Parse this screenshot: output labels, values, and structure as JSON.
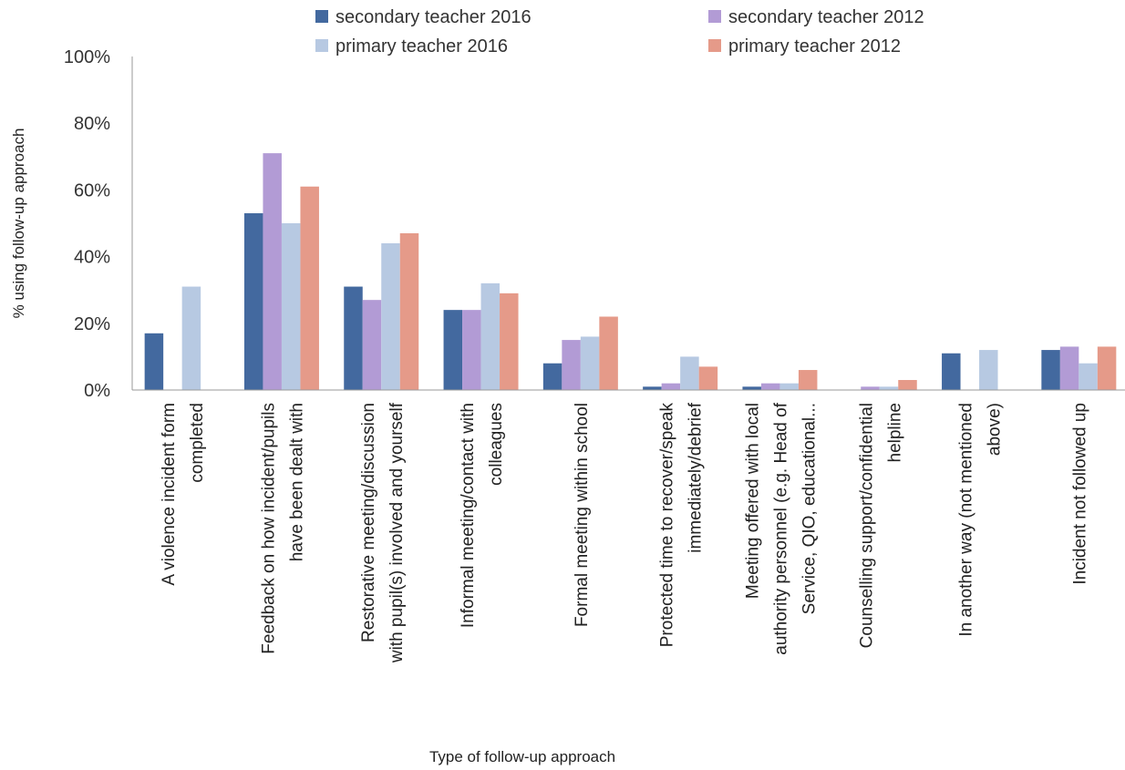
{
  "chart_data": {
    "type": "bar",
    "title": "",
    "xlabel": "Type of follow-up approach",
    "ylabel": "% using follow-up approach",
    "ylim": [
      0,
      100
    ],
    "yticks": [
      "0%",
      "20%",
      "40%",
      "60%",
      "80%",
      "100%"
    ],
    "grid": false,
    "legend_position": "top",
    "categories": [
      [
        "A violence incident form",
        "completed"
      ],
      [
        "Feedback on how incident/pupils",
        "have been dealt with"
      ],
      [
        "Restorative meeting/discussion",
        "with pupil(s) involved and yourself"
      ],
      [
        "Informal meeting/contact with",
        "colleagues"
      ],
      [
        "Formal meeting within school"
      ],
      [
        "Protected time to recover/speak",
        "immediately/debrief"
      ],
      [
        "Meeting offered with local",
        "authority personnel (e.g. Head of",
        "Service, QIO, educational..."
      ],
      [
        "Counselling support/confidential",
        "helpline"
      ],
      [
        "In another way (not mentioned",
        "above)"
      ],
      [
        "Incident not followed up"
      ]
    ],
    "series": [
      {
        "name": "secondary teacher 2016",
        "color": "#43699f",
        "values": [
          17,
          53,
          31,
          24,
          8,
          1,
          1,
          0,
          11,
          12
        ]
      },
      {
        "name": "secondary teacher 2012",
        "color": "#b29bd5",
        "values": [
          0,
          71,
          27,
          24,
          15,
          2,
          2,
          1,
          0,
          13
        ]
      },
      {
        "name": "primary teacher 2016",
        "color": "#b7c9e2",
        "values": [
          31,
          50,
          44,
          32,
          16,
          10,
          2,
          1,
          12,
          8
        ]
      },
      {
        "name": "primary teacher 2012",
        "color": "#e59a89",
        "values": [
          0,
          61,
          47,
          29,
          22,
          7,
          6,
          3,
          0,
          13
        ]
      }
    ]
  }
}
